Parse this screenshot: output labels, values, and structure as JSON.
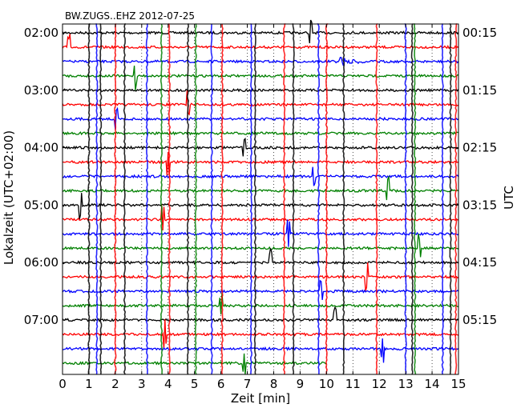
{
  "chart_data": {
    "type": "line",
    "title": "BW.ZUGS..EHZ 2012-07-25",
    "xlabel": "Zeit  [min]",
    "ylabel_left": "Lokalzeit (UTC+02:00)",
    "ylabel_right": "UTC",
    "xlim": [
      0,
      15
    ],
    "xticks": [
      0,
      1,
      2,
      3,
      4,
      5,
      6,
      7,
      8,
      9,
      10,
      11,
      12,
      13,
      14,
      15
    ],
    "grid": "vertical dotted at each minute",
    "left_tick_labels": [
      "02:00",
      "03:00",
      "04:00",
      "05:00",
      "06:00",
      "07:00"
    ],
    "right_tick_labels": [
      "00:15",
      "01:15",
      "02:15",
      "03:15",
      "04:15",
      "05:15"
    ],
    "trace_interval_minutes": 15,
    "trace_count": 24,
    "trace_colors": [
      "#000000",
      "#ff0000",
      "#0000ff",
      "#008000"
    ],
    "last_trace_end_min": 10.0,
    "events": [
      {
        "trace": 0,
        "x": 9.4
      },
      {
        "trace": 1,
        "x": 0.25
      },
      {
        "trace": 2,
        "x": 10.5,
        "type": "local-quake"
      },
      {
        "trace": 3,
        "x": 2.75
      },
      {
        "trace": 5,
        "x": 4.75
      },
      {
        "trace": 6,
        "x": 2.05
      },
      {
        "trace": 8,
        "x": 6.9
      },
      {
        "trace": 9,
        "x": 4.0
      },
      {
        "trace": 10,
        "x": 9.5
      },
      {
        "trace": 11,
        "x": 12.3
      },
      {
        "trace": 12,
        "x": 0.7
      },
      {
        "trace": 13,
        "x": 3.8
      },
      {
        "trace": 14,
        "x": 8.55
      },
      {
        "trace": 15,
        "x": 13.5
      },
      {
        "trace": 16,
        "x": 7.9
      },
      {
        "trace": 17,
        "x": 11.5
      },
      {
        "trace": 18,
        "x": 9.8
      },
      {
        "trace": 19,
        "x": 6.0
      },
      {
        "trace": 20,
        "x": 10.3
      },
      {
        "trace": 21,
        "x": 3.9
      },
      {
        "trace": 22,
        "x": 12.1
      },
      {
        "trace": 23,
        "x": 6.9
      }
    ],
    "spikes": [
      {
        "x": 1.0,
        "color": "#000000"
      },
      {
        "x": 1.3,
        "color": "#0000ff"
      },
      {
        "x": 1.45,
        "color": "#000000"
      },
      {
        "x": 2.0,
        "color": "#ff0000"
      },
      {
        "x": 2.35,
        "color": "#000000"
      },
      {
        "x": 3.2,
        "color": "#0000ff"
      },
      {
        "x": 3.75,
        "color": "#008000"
      },
      {
        "x": 4.05,
        "color": "#ff0000"
      },
      {
        "x": 4.75,
        "color": "#000000"
      },
      {
        "x": 5.05,
        "color": "#008000"
      },
      {
        "x": 5.65,
        "color": "#0000ff"
      },
      {
        "x": 6.05,
        "color": "#ff0000"
      },
      {
        "x": 7.15,
        "color": "#0000ff"
      },
      {
        "x": 7.3,
        "color": "#000000"
      },
      {
        "x": 8.4,
        "color": "#ff0000"
      },
      {
        "x": 8.75,
        "color": "#000000"
      },
      {
        "x": 9.7,
        "color": "#0000ff"
      },
      {
        "x": 10.0,
        "color": "#ff0000"
      },
      {
        "x": 10.65,
        "color": "#000000"
      },
      {
        "x": 11.9,
        "color": "#ff0000"
      },
      {
        "x": 13.0,
        "color": "#0000ff"
      },
      {
        "x": 13.25,
        "color": "#000000"
      },
      {
        "x": 13.35,
        "color": "#008000"
      },
      {
        "x": 14.4,
        "color": "#0000ff"
      },
      {
        "x": 14.7,
        "color": "#000000"
      },
      {
        "x": 14.9,
        "color": "#ff0000"
      }
    ]
  }
}
